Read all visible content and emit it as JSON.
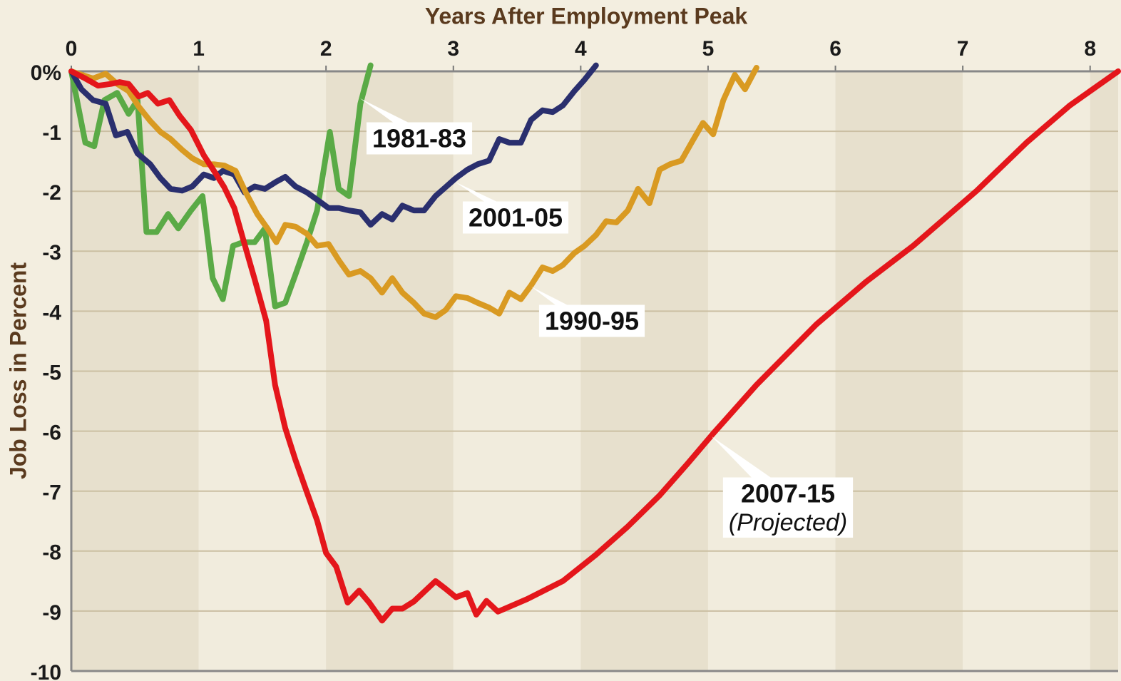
{
  "chart_data": {
    "type": "line",
    "x_label": "Years After Employment Peak",
    "y_label": "Job Loss in Percent",
    "annotation": "(Projected)",
    "xlim": [
      0,
      8.22
    ],
    "ylim": [
      -10,
      0
    ],
    "xticks": [
      0,
      1,
      2,
      3,
      4,
      5,
      6,
      7,
      8
    ],
    "yticks": [
      {
        "value": 0,
        "label": "0%"
      },
      -1,
      -2,
      -3,
      -4,
      -5,
      -6,
      -7,
      -8,
      -9,
      -10
    ],
    "grid": true,
    "series": [
      {
        "name": "1981-83",
        "color": "#5aaa46",
        "x": [
          0,
          0.11,
          0.18,
          0.26,
          0.36,
          0.45,
          0.52,
          0.59,
          0.67,
          0.76,
          0.84,
          0.94,
          1.03,
          1.11,
          1.19,
          1.27,
          1.35,
          1.44,
          1.52,
          1.6,
          1.68,
          1.76,
          1.85,
          1.93,
          2.03,
          2.1,
          2.18,
          2.27,
          2.35
        ],
        "values": [
          0,
          -1.19,
          -1.25,
          -0.48,
          -0.36,
          -0.71,
          -0.48,
          -2.68,
          -2.68,
          -2.38,
          -2.62,
          -2.32,
          -2.08,
          -3.45,
          -3.8,
          -2.91,
          -2.85,
          -2.85,
          -2.62,
          -3.92,
          -3.86,
          -3.39,
          -2.85,
          -2.32,
          -1.01,
          -1.96,
          -2.08,
          -0.54,
          0.1
        ]
      },
      {
        "name": "2001-05",
        "color": "#2a2f6e",
        "x": [
          0,
          0.08,
          0.17,
          0.27,
          0.35,
          0.44,
          0.52,
          0.62,
          0.7,
          0.78,
          0.87,
          0.95,
          1.04,
          1.12,
          1.19,
          1.28,
          1.36,
          1.44,
          1.52,
          1.61,
          1.68,
          1.76,
          1.85,
          1.93,
          2.02,
          2.1,
          2.18,
          2.27,
          2.35,
          2.44,
          2.52,
          2.6,
          2.69,
          2.77,
          2.86,
          2.94,
          3.02,
          3.11,
          3.19,
          3.28,
          3.36,
          3.44,
          3.53,
          3.61,
          3.7,
          3.78,
          3.86,
          3.95,
          4.03,
          4.12
        ],
        "values": [
          0,
          -0.3,
          -0.48,
          -0.54,
          -1.07,
          -1.01,
          -1.37,
          -1.55,
          -1.78,
          -1.96,
          -1.99,
          -1.92,
          -1.72,
          -1.78,
          -1.66,
          -1.72,
          -2.02,
          -1.92,
          -1.96,
          -1.84,
          -1.76,
          -1.92,
          -2.02,
          -2.14,
          -2.28,
          -2.28,
          -2.32,
          -2.35,
          -2.56,
          -2.38,
          -2.47,
          -2.24,
          -2.32,
          -2.32,
          -2.08,
          -1.93,
          -1.78,
          -1.64,
          -1.55,
          -1.49,
          -1.13,
          -1.19,
          -1.19,
          -0.81,
          -0.65,
          -0.68,
          -0.57,
          -0.33,
          -0.14,
          0.1
        ]
      },
      {
        "name": "1990-95",
        "color": "#d99a22",
        "x": [
          0,
          0.17,
          0.27,
          0.36,
          0.45,
          0.53,
          0.62,
          0.7,
          0.78,
          0.87,
          0.95,
          1.04,
          1.12,
          1.2,
          1.29,
          1.37,
          1.46,
          1.54,
          1.61,
          1.68,
          1.76,
          1.85,
          1.93,
          2.02,
          2.1,
          2.18,
          2.27,
          2.35,
          2.44,
          2.52,
          2.6,
          2.69,
          2.77,
          2.86,
          2.94,
          3.02,
          3.11,
          3.19,
          3.28,
          3.36,
          3.44,
          3.53,
          3.61,
          3.7,
          3.78,
          3.86,
          3.95,
          4.03,
          4.12,
          4.2,
          4.28,
          4.37,
          4.45,
          4.54,
          4.62,
          4.7,
          4.79,
          4.87,
          4.96,
          5.04,
          5.12,
          5.21,
          5.29,
          5.38
        ],
        "values": [
          0,
          -0.12,
          -0.04,
          -0.21,
          -0.33,
          -0.59,
          -0.83,
          -1.01,
          -1.13,
          -1.31,
          -1.45,
          -1.55,
          -1.55,
          -1.57,
          -1.66,
          -2.02,
          -2.38,
          -2.62,
          -2.85,
          -2.56,
          -2.59,
          -2.71,
          -2.91,
          -2.88,
          -3.15,
          -3.39,
          -3.33,
          -3.45,
          -3.69,
          -3.45,
          -3.69,
          -3.86,
          -4.04,
          -4.1,
          -3.98,
          -3.75,
          -3.78,
          -3.86,
          -3.94,
          -4.04,
          -3.69,
          -3.8,
          -3.57,
          -3.27,
          -3.33,
          -3.23,
          -3.03,
          -2.91,
          -2.73,
          -2.5,
          -2.52,
          -2.32,
          -1.96,
          -2.2,
          -1.64,
          -1.55,
          -1.49,
          -1.19,
          -0.86,
          -1.05,
          -0.48,
          -0.06,
          -0.3,
          0.06
        ]
      },
      {
        "name": "2007-15",
        "color": "#e4161b",
        "x": [
          0,
          0.11,
          0.21,
          0.31,
          0.38,
          0.45,
          0.53,
          0.6,
          0.68,
          0.77,
          0.85,
          0.94,
          1.04,
          1.12,
          1.2,
          1.28,
          1.36,
          1.44,
          1.53,
          1.6,
          1.68,
          1.76,
          1.85,
          1.93,
          2.0,
          2.08,
          2.17,
          2.26,
          2.34,
          2.44,
          2.52,
          2.6,
          2.69,
          2.77,
          2.86,
          2.94,
          3.02,
          3.11,
          3.18,
          3.26,
          3.35,
          3.58,
          3.86,
          4.12,
          4.37,
          4.62,
          4.84,
          5.04,
          5.38,
          5.85,
          6.24,
          6.61,
          7.11,
          7.5,
          7.84,
          8.22
        ],
        "values": [
          0,
          -0.12,
          -0.24,
          -0.21,
          -0.18,
          -0.21,
          -0.42,
          -0.36,
          -0.54,
          -0.48,
          -0.74,
          -0.98,
          -1.4,
          -1.66,
          -1.93,
          -2.28,
          -2.88,
          -3.47,
          -4.16,
          -5.23,
          -5.95,
          -6.48,
          -7.02,
          -7.49,
          -8.03,
          -8.26,
          -8.86,
          -8.66,
          -8.86,
          -9.16,
          -8.96,
          -8.96,
          -8.84,
          -8.68,
          -8.5,
          -8.63,
          -8.77,
          -8.7,
          -9.06,
          -8.83,
          -9.01,
          -8.8,
          -8.5,
          -8.06,
          -7.59,
          -7.07,
          -6.54,
          -6.04,
          -5.23,
          -4.22,
          -3.51,
          -2.91,
          -1.99,
          -1.19,
          -0.57,
          0
        ]
      }
    ]
  }
}
